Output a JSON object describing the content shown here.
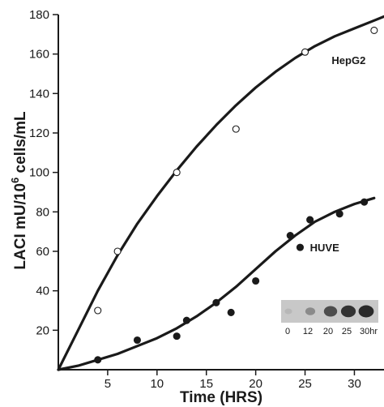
{
  "chart_data": {
    "type": "scatter",
    "xlabel": "Time (HRS)",
    "ylabel_main": "LACI mU/10",
    "ylabel_sup": "6",
    "ylabel_tail": " cells/mL",
    "xlim": [
      0,
      33
    ],
    "ylim": [
      0,
      180
    ],
    "xticks": [
      5,
      10,
      15,
      20,
      25,
      30
    ],
    "yticks": [
      20,
      40,
      60,
      80,
      100,
      120,
      140,
      160,
      180
    ],
    "grid": false,
    "series": [
      {
        "name": "HepG2",
        "marker": "open-circle",
        "points": [
          [
            4,
            30
          ],
          [
            6,
            60
          ],
          [
            12,
            100
          ],
          [
            18,
            122
          ],
          [
            25,
            161
          ],
          [
            32,
            172
          ]
        ],
        "fit_curve": [
          [
            0,
            0
          ],
          [
            2,
            20
          ],
          [
            4,
            40
          ],
          [
            6,
            58
          ],
          [
            8,
            74
          ],
          [
            10,
            88
          ],
          [
            12,
            101
          ],
          [
            14,
            113
          ],
          [
            16,
            124
          ],
          [
            18,
            134
          ],
          [
            20,
            143
          ],
          [
            22,
            151
          ],
          [
            24,
            158
          ],
          [
            26,
            164
          ],
          [
            28,
            169
          ],
          [
            30,
            173
          ],
          [
            32,
            177
          ],
          [
            33,
            179
          ]
        ]
      },
      {
        "name": "HUVE",
        "marker": "filled-circle",
        "points": [
          [
            4,
            5
          ],
          [
            8,
            15
          ],
          [
            12,
            17
          ],
          [
            13,
            25
          ],
          [
            16,
            34
          ],
          [
            17.5,
            29
          ],
          [
            20,
            45
          ],
          [
            23.5,
            68
          ],
          [
            24.5,
            62
          ],
          [
            25.5,
            76
          ],
          [
            28.5,
            79
          ],
          [
            31,
            85
          ]
        ],
        "fit_curve": [
          [
            0,
            0
          ],
          [
            2,
            2
          ],
          [
            4,
            5
          ],
          [
            6,
            8
          ],
          [
            8,
            12
          ],
          [
            10,
            16
          ],
          [
            12,
            21
          ],
          [
            14,
            27
          ],
          [
            16,
            34
          ],
          [
            18,
            42
          ],
          [
            20,
            51
          ],
          [
            22,
            60
          ],
          [
            24,
            68
          ],
          [
            26,
            75
          ],
          [
            28,
            80
          ],
          [
            30,
            84
          ],
          [
            32,
            87
          ]
        ]
      }
    ],
    "inset": {
      "labels": [
        "0",
        "12",
        "20",
        "25",
        "30hr"
      ],
      "intensity": [
        0.1,
        0.35,
        0.7,
        0.85,
        0.9
      ]
    }
  }
}
